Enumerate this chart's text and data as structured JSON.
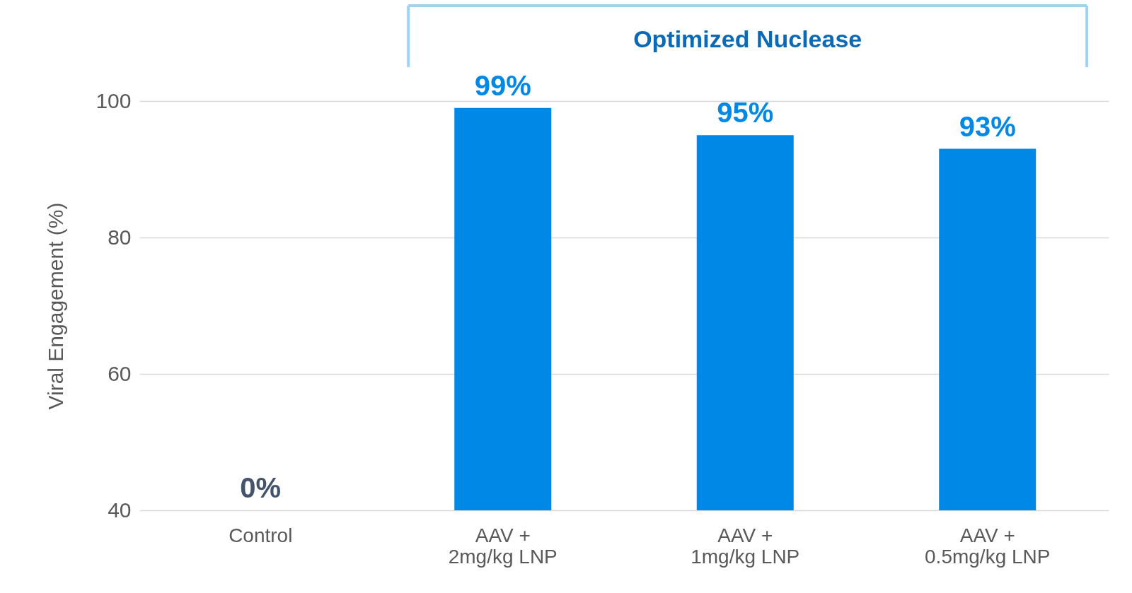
{
  "chart_data": {
    "type": "bar",
    "ylabel": "Viral Engagement (%)",
    "categories": [
      "Control",
      "AAV +\n2mg/kg LNP",
      "AAV +\n1mg/kg LNP",
      "AAV +\n0.5mg/kg LNP"
    ],
    "values": [
      null,
      99,
      95,
      93
    ],
    "value_labels": [
      "0%",
      "99%",
      "95%",
      "93%"
    ],
    "color": "#0088e6",
    "ylim": [
      40,
      100
    ],
    "yticks": [
      40,
      60,
      80,
      100
    ],
    "grid": "y",
    "annotations": [
      "Optimized Nuclease"
    ]
  }
}
